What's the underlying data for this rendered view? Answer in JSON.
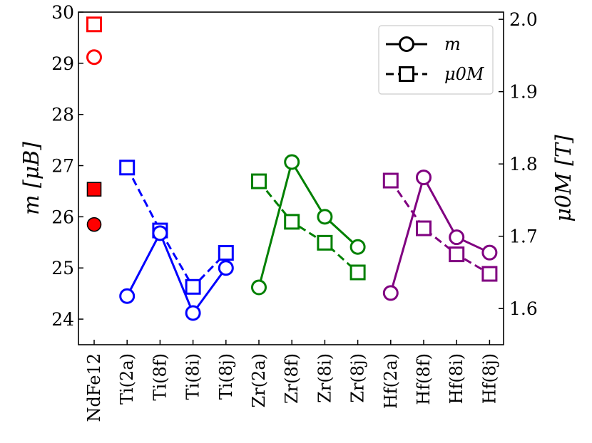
{
  "chart_data": {
    "type": "line",
    "categories": [
      "NdFe12",
      "Ti(2a)",
      "Ti(8f)",
      "Ti(8i)",
      "Ti(8j)",
      "Zr(2a)",
      "Zr(8f)",
      "Zr(8i)",
      "Zr(8j)",
      "Hf(2a)",
      "Hf(8f)",
      "Hf(8i)",
      "Hf(8j)"
    ],
    "left_axis": {
      "label": "m [μB]",
      "ylim": [
        23.5,
        30.0
      ],
      "ticks": [
        24,
        25,
        26,
        27,
        28,
        29,
        30
      ]
    },
    "right_axis": {
      "label": "μ0M [T]",
      "ylim": [
        1.55,
        2.01
      ],
      "ticks": [
        1.6,
        1.7,
        1.8,
        1.9,
        2.0
      ],
      "tick_labels": [
        "1.6",
        "1.7",
        "1.8",
        "1.9",
        "2.0"
      ]
    },
    "legend": {
      "placement": "top-right",
      "entries": [
        {
          "label": "m",
          "marker": "circle",
          "line": "solid"
        },
        {
          "label": "μ0M",
          "marker": "square",
          "line": "dashed"
        }
      ]
    },
    "reference": {
      "category": "NdFe12",
      "m_open": 29.12,
      "mu0M_open": 1.993,
      "m_filled": 25.85,
      "mu0M_filled": 1.765,
      "color": "#ff0000"
    },
    "groups": [
      {
        "element": "Ti",
        "color": "#0000ff",
        "categories": [
          "Ti(2a)",
          "Ti(8f)",
          "Ti(8i)",
          "Ti(8j)"
        ],
        "m": [
          24.45,
          25.68,
          24.12,
          25.0
        ],
        "mu0M": [
          1.795,
          1.708,
          1.63,
          1.677
        ]
      },
      {
        "element": "Zr",
        "color": "#008000",
        "categories": [
          "Zr(2a)",
          "Zr(8f)",
          "Zr(8i)",
          "Zr(8j)"
        ],
        "m": [
          24.62,
          27.07,
          26.0,
          25.41
        ],
        "mu0M": [
          1.776,
          1.72,
          1.691,
          1.65
        ]
      },
      {
        "element": "Hf",
        "color": "#800080",
        "categories": [
          "Hf(2a)",
          "Hf(8f)",
          "Hf(8i)",
          "Hf(8j)"
        ],
        "m": [
          24.51,
          26.77,
          25.6,
          25.3
        ],
        "mu0M": [
          1.777,
          1.711,
          1.675,
          1.648
        ]
      }
    ]
  }
}
